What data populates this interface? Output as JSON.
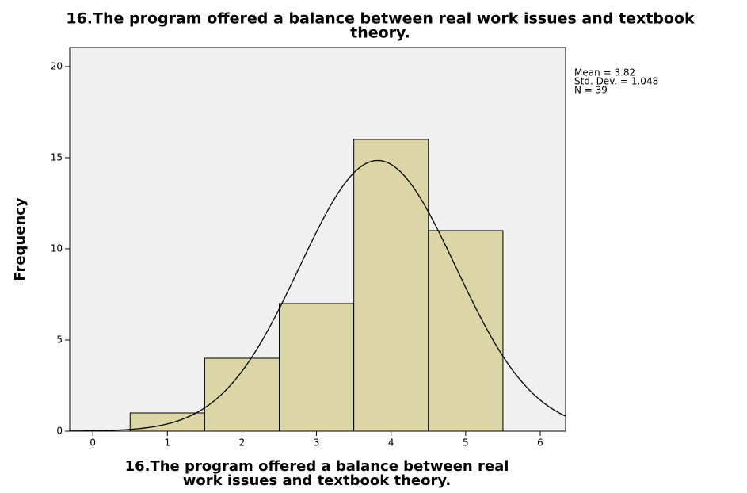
{
  "chart_data": {
    "type": "histogram",
    "title_lines": [
      "16.The program offered a balance between real work issues and textbook",
      "theory."
    ],
    "x_label_lines": [
      "16.The program offered a balance between real",
      "work issues and textbook theory."
    ],
    "y_label": "Frequency",
    "bins": [
      0.5,
      1.5,
      2.5,
      3.5,
      4.5,
      5.5
    ],
    "counts": [
      1,
      4,
      7,
      16,
      11
    ],
    "color": "#dcd5a6",
    "plot_background": "#f0f0f0",
    "xlim": [
      -0.31,
      6.34
    ],
    "xticks": [
      0,
      1,
      2,
      3,
      4,
      5,
      6
    ],
    "ylim": [
      0,
      21.04
    ],
    "yticks": [
      0,
      5,
      10,
      15,
      20
    ],
    "annotations": [
      "Mean = 3.82",
      "Std. Dev. = 1.048",
      "N = 39"
    ],
    "normal_curve": {
      "mean": 3.82,
      "std_dev": 1.048,
      "n": 39
    }
  }
}
